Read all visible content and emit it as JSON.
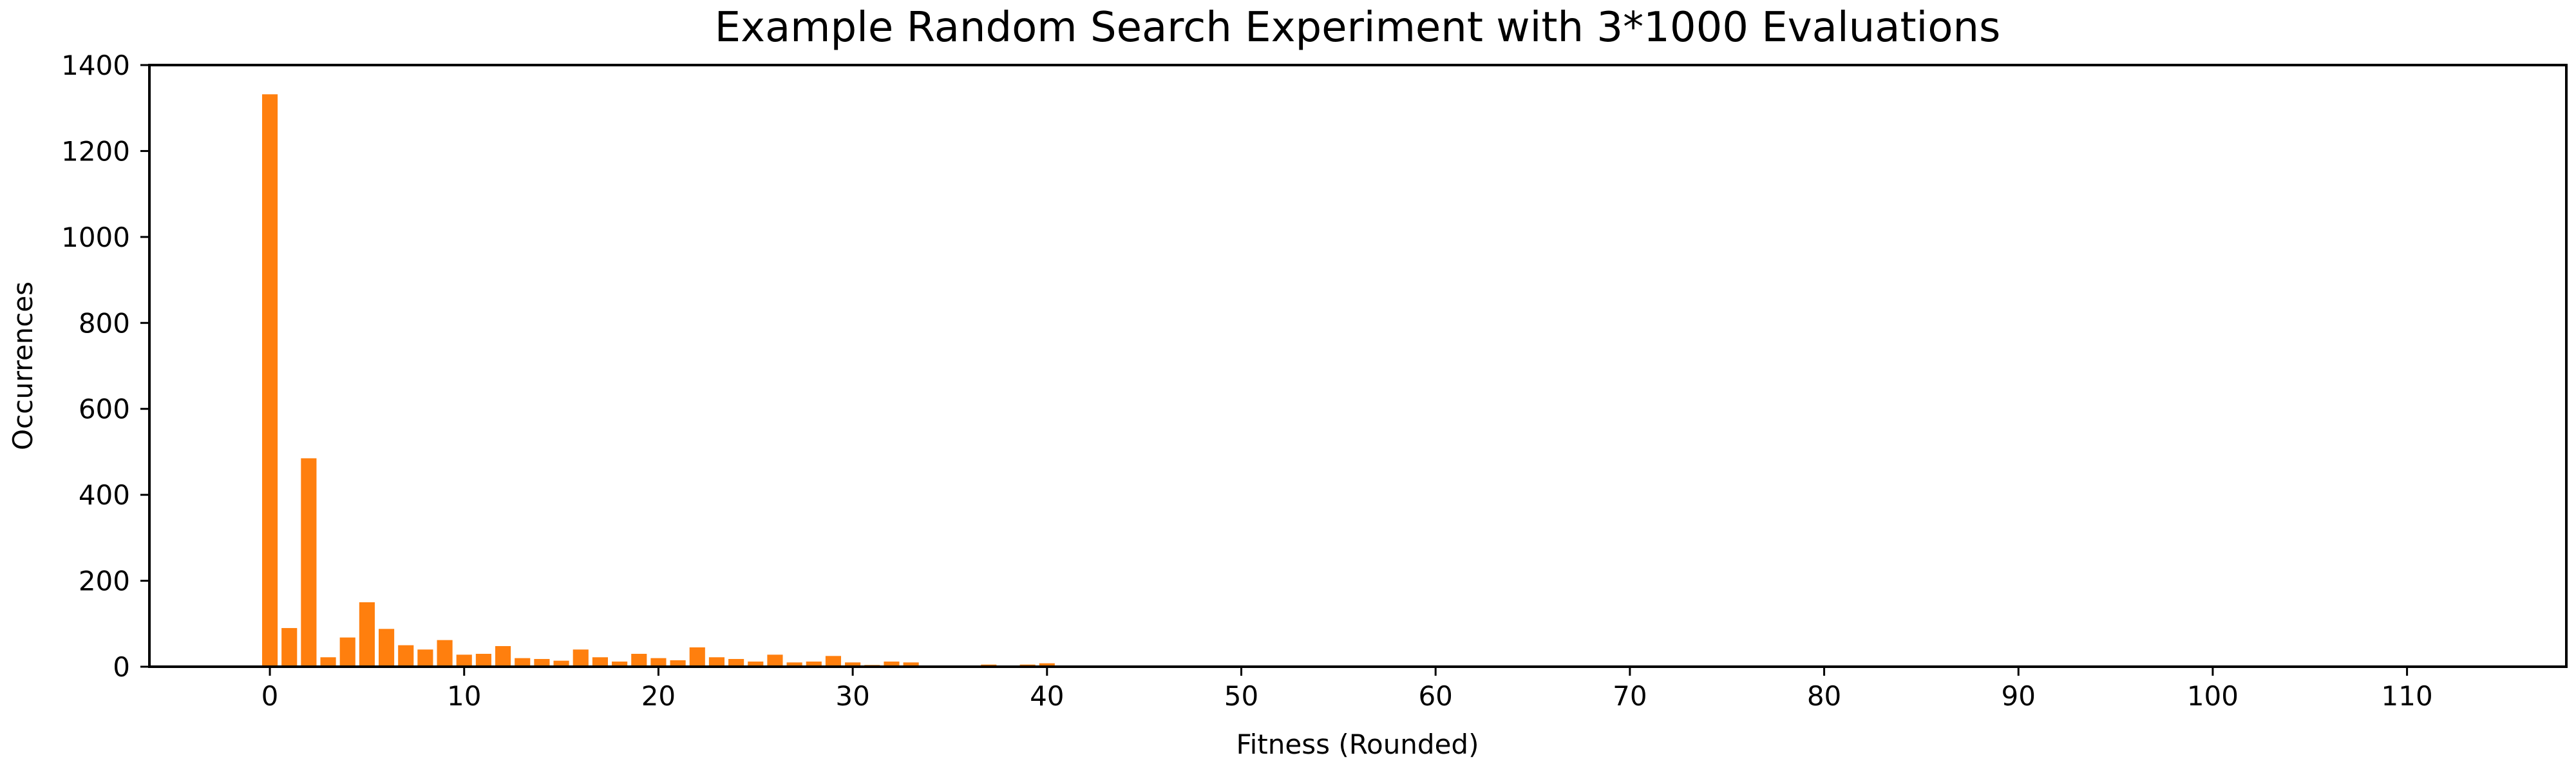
{
  "chart_data": {
    "type": "bar",
    "title": "Example Random Search Experiment with 3*1000 Evaluations",
    "xlabel": "Fitness (Rounded)",
    "ylabel": "Occurrences",
    "xlim": [
      -6.2,
      118.2
    ],
    "ylim": [
      0,
      1400
    ],
    "xticks": [
      0,
      10,
      20,
      30,
      40,
      50,
      60,
      70,
      80,
      90,
      100,
      110
    ],
    "yticks": [
      0,
      200,
      400,
      600,
      800,
      1000,
      1200,
      1400
    ],
    "bar_color": "#ff7f0e",
    "grid": false,
    "x": [
      0,
      1,
      2,
      3,
      4,
      5,
      6,
      7,
      8,
      9,
      10,
      11,
      12,
      13,
      14,
      15,
      16,
      17,
      18,
      19,
      20,
      21,
      22,
      23,
      24,
      25,
      26,
      27,
      28,
      29,
      30,
      31,
      32,
      33,
      34,
      35,
      36,
      37,
      38,
      39,
      40,
      41,
      42,
      43,
      44,
      45
    ],
    "values": [
      1332,
      90,
      485,
      22,
      68,
      150,
      88,
      50,
      40,
      62,
      28,
      30,
      48,
      20,
      18,
      14,
      40,
      22,
      12,
      30,
      20,
      15,
      45,
      22,
      18,
      12,
      28,
      10,
      12,
      25,
      10,
      4,
      12,
      10,
      2,
      2,
      1,
      5,
      1,
      5,
      8,
      2,
      1,
      2,
      0,
      1
    ]
  }
}
